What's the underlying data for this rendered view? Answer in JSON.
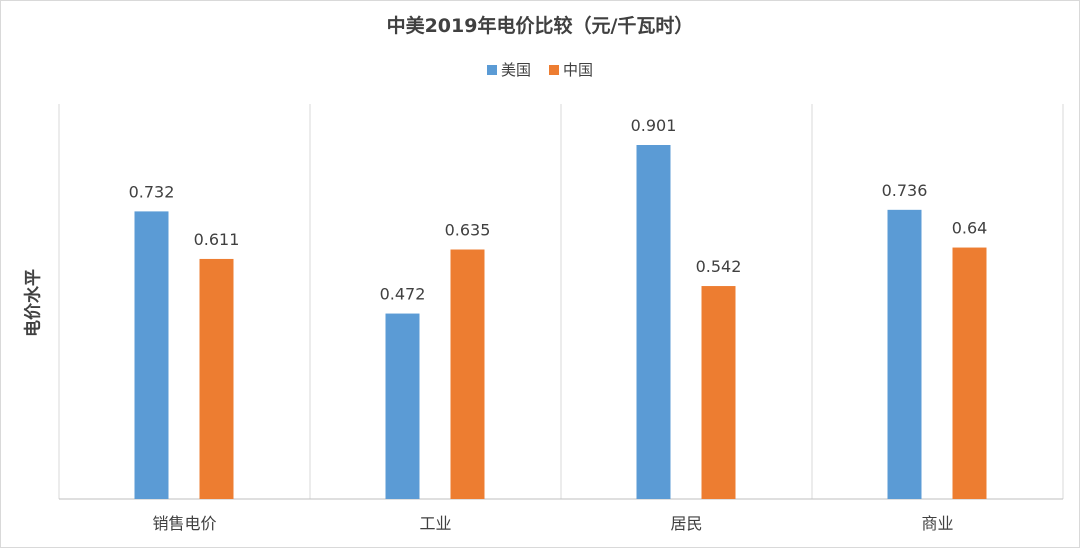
{
  "chart_data": {
    "type": "bar",
    "title": "中美2019年电价比较（元/千瓦时）",
    "ylabel": "电价水平",
    "xlabel": "",
    "categories": [
      "销售电价",
      "工业",
      "居民",
      "商业"
    ],
    "series": [
      {
        "name": "美国",
        "color": "#5b9bd5",
        "values": [
          0.732,
          0.472,
          0.901,
          0.736
        ]
      },
      {
        "name": "中国",
        "color": "#ed7d31",
        "values": [
          0.611,
          0.635,
          0.542,
          0.64
        ]
      }
    ],
    "ylim": [
      0,
      1.0
    ],
    "grid": "vertical",
    "legend": "top-center"
  }
}
